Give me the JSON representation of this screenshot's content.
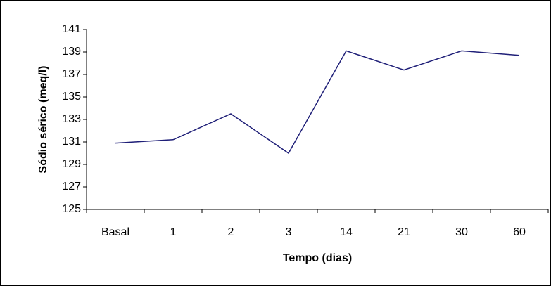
{
  "chart_data": {
    "type": "line",
    "x_label": "Tempo (dias)",
    "y_label": "Sódio sérico (meq/l)",
    "categories": [
      "Basal",
      "1",
      "2",
      "3",
      "14",
      "21",
      "30",
      "60"
    ],
    "series": [
      {
        "color": "#1f1f78",
        "values": [
          130.9,
          131.2,
          133.5,
          130.0,
          139.1,
          137.4,
          139.1,
          138.7
        ]
      }
    ],
    "ylim": [
      125,
      141
    ],
    "yticks": [
      125,
      127,
      129,
      131,
      133,
      135,
      137,
      139,
      141
    ],
    "grid": false
  }
}
